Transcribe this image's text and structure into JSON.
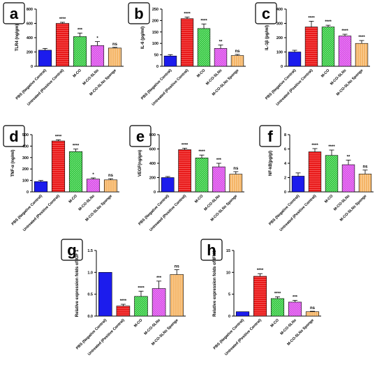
{
  "categories": [
    "PBS (Negative Control)",
    "Untreated (Positive Control)",
    "M-CO",
    "M-CO-SLNs",
    "M-CO-SLNs Sponge"
  ],
  "colors": [
    "#1c1ced",
    "#e81919",
    "#2ec23a",
    "#d94ae8",
    "#f5b567"
  ],
  "chart_data": [
    {
      "type": "bar",
      "panel": "a",
      "ylabel": "TLR4 (ng/gm)",
      "ylim": [
        0,
        800
      ],
      "yticks": [
        0,
        200,
        400,
        600,
        800
      ],
      "categories": [
        "PBS (Negative Control)",
        "Untreated (Positive Control)",
        "M-CO",
        "M-CO-SLNs",
        "M-CO-SLNs Sponge"
      ],
      "values": [
        225,
        600,
        415,
        290,
        255
      ],
      "errors": [
        25,
        15,
        50,
        55,
        10
      ],
      "significance": [
        "",
        "****",
        "***",
        "*",
        "ns"
      ]
    },
    {
      "type": "bar",
      "panel": "b",
      "ylabel": "IL-6 (pg/ml)",
      "ylim": [
        0,
        250
      ],
      "yticks": [
        0,
        50,
        100,
        150,
        200,
        250
      ],
      "categories": [
        "PBS (Negative Control)",
        "Untreated (Positive Control)",
        "M-CO",
        "M-CO-SLNs",
        "M-CO-SLNs Sponge"
      ],
      "values": [
        45,
        208,
        165,
        78,
        47
      ],
      "errors": [
        6,
        7,
        20,
        15,
        5
      ],
      "significance": [
        "",
        "****",
        "****",
        "**",
        "ns"
      ]
    },
    {
      "type": "bar",
      "panel": "c",
      "ylabel": "IL-1β (pg/ml)",
      "ylim": [
        0,
        400
      ],
      "yticks": [
        0,
        100,
        200,
        300,
        400
      ],
      "categories": [
        "PBS (Negative Control)",
        "Untreated (Positive Control)",
        "M-CO",
        "M-CO-SLNs",
        "M-CO-SLNs Sponge"
      ],
      "values": [
        100,
        275,
        275,
        212,
        160
      ],
      "errors": [
        12,
        40,
        12,
        12,
        20
      ],
      "significance": [
        "",
        "****",
        "****",
        "****",
        "****"
      ]
    },
    {
      "type": "bar",
      "panel": "d",
      "ylabel": "TNF-α (ng/ml)",
      "ylim": [
        0,
        500
      ],
      "yticks": [
        0,
        100,
        200,
        300,
        400,
        500
      ],
      "categories": [
        "PBS (Negative Control)",
        "Untreated (Positive Control)",
        "M-CO",
        "M-CO-SLNs",
        "M-CO-SLNs Sponge"
      ],
      "values": [
        90,
        445,
        352,
        112,
        105
      ],
      "errors": [
        10,
        10,
        22,
        10,
        10
      ],
      "significance": [
        "",
        "****",
        "****",
        "*",
        "ns"
      ]
    },
    {
      "type": "bar",
      "panel": "e",
      "ylabel": "VEGF(ng/gm)",
      "ylim": [
        0,
        800
      ],
      "yticks": [
        0,
        200,
        400,
        600,
        800
      ],
      "categories": [
        "PBS (Negative Control)",
        "Untreated (Positive Control)",
        "M-CO",
        "M-CO-SLNs",
        "M-CO-SLNs Sponge"
      ],
      "values": [
        200,
        590,
        475,
        350,
        248
      ],
      "errors": [
        15,
        20,
        40,
        50,
        35
      ],
      "significance": [
        "",
        "****",
        "****",
        "***",
        "ns"
      ]
    },
    {
      "type": "bar",
      "panel": "f",
      "ylabel": "NF-kB(pg/gl)",
      "ylim": [
        0,
        8
      ],
      "yticks": [
        0,
        2,
        4,
        6,
        8
      ],
      "categories": [
        "PBS (Negative Control)",
        "Untreated (Positive Control)",
        "M-CO",
        "M-CO-SLNs",
        "M-CO-SLNs Sponge"
      ],
      "values": [
        2.2,
        5.6,
        5.1,
        3.8,
        2.5
      ],
      "errors": [
        0.45,
        0.45,
        0.75,
        0.65,
        0.55
      ],
      "significance": [
        "",
        "****",
        "****",
        "**",
        "ns"
      ]
    },
    {
      "type": "bar",
      "panel": "g",
      "ylabel": "Relative expression folds of IGF 1",
      "ylim": [
        0,
        1.5
      ],
      "yticks": [
        0.0,
        0.5,
        1.0,
        1.5
      ],
      "ytick_labels": [
        "0.0",
        "0.5",
        "1.0",
        "1.5"
      ],
      "categories": [
        "PBS (Negative Control)",
        "Untreated (Positive Control)",
        "M-CO",
        "M-CO-SLNs",
        "M-CO-SLNs Sponge"
      ],
      "values": [
        1.0,
        0.23,
        0.45,
        0.63,
        0.95
      ],
      "errors": [
        0,
        0.04,
        0.12,
        0.17,
        0.11
      ],
      "significance": [
        "",
        "****",
        "****",
        "***",
        "ns"
      ]
    },
    {
      "type": "bar",
      "panel": "h",
      "ylabel": "Relative expression folds of IFNG",
      "ylim": [
        0,
        15
      ],
      "yticks": [
        0,
        5,
        10,
        15
      ],
      "categories": [
        "PBS (Negative Control)",
        "Untreated (Positive Control)",
        "M-CO",
        "M-CO-SLNs",
        "M-CO-SLNs Sponge"
      ],
      "values": [
        1.0,
        9.1,
        4.0,
        3.2,
        1.0
      ],
      "errors": [
        0,
        0.6,
        0.4,
        0.4,
        0.1
      ],
      "significance": [
        "",
        "****",
        "****",
        "***",
        "ns"
      ]
    }
  ]
}
